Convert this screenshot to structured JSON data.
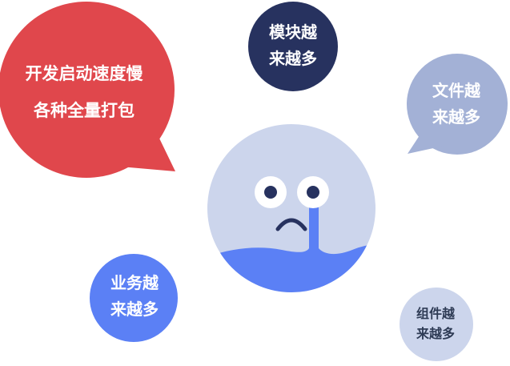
{
  "bubbles": {
    "red": {
      "line1": "开发启动速度慢",
      "line2": "各种全量打包",
      "color": "#e0474c"
    },
    "navy": {
      "line1": "模块越",
      "line2": "来越多",
      "color": "#27325f"
    },
    "grey_blue": {
      "line1": "文件越",
      "line2": "来越多",
      "color": "#a3b1d6"
    },
    "blue": {
      "line1": "业务越",
      "line2": "来越多",
      "color": "#5b80f5"
    },
    "light": {
      "line1": "组件越",
      "line2": "来越多",
      "color": "#ccd5ec"
    }
  },
  "face": {
    "expression": "crying",
    "skin_color": "#ccd5ec",
    "water_color": "#5b80f5",
    "eye_color": "#27325f"
  },
  "icons": [
    "crying-face-icon"
  ]
}
